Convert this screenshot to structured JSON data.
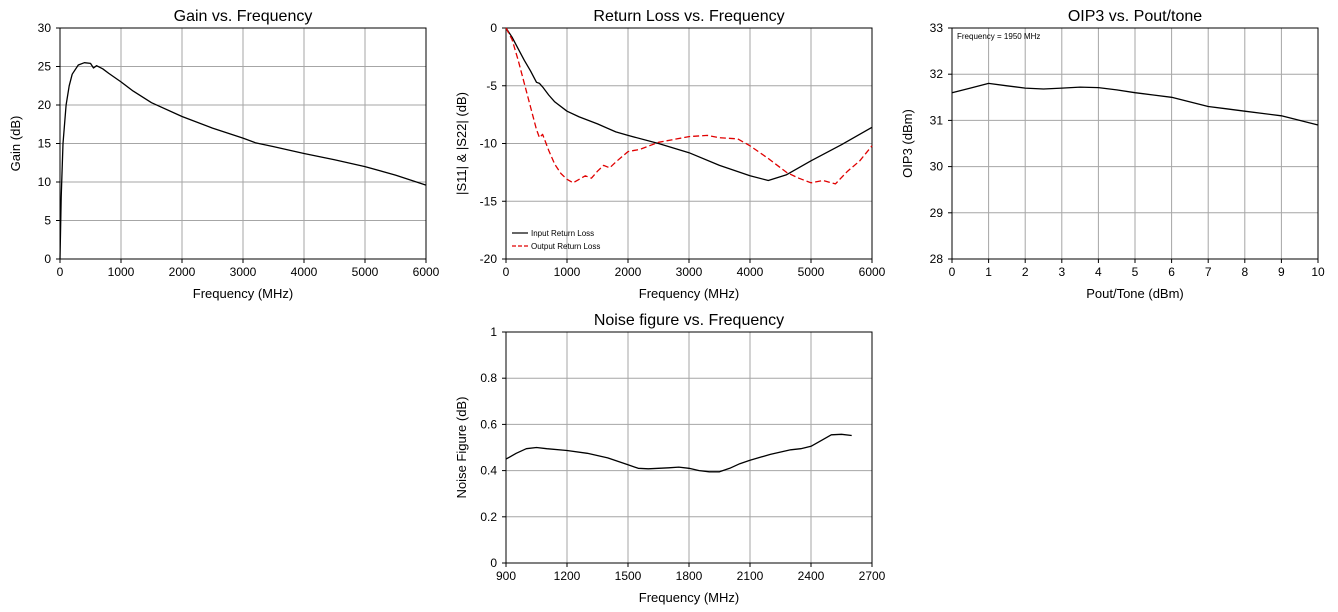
{
  "chart_data": [
    {
      "type": "line",
      "title": "Gain vs. Frequency",
      "xlabel": "Frequency (MHz)",
      "ylabel": "Gain (dB)",
      "xlim": [
        0,
        6000
      ],
      "ylim": [
        0,
        30
      ],
      "xticks": [
        "0",
        "1000",
        "2000",
        "3000",
        "4000",
        "5000",
        "6000"
      ],
      "yticks": [
        "0",
        "5",
        "10",
        "15",
        "20",
        "25",
        "30"
      ],
      "grid": true,
      "series": [
        {
          "color": "#000000",
          "dash": "solid",
          "x": [
            0,
            20,
            50,
            100,
            150,
            200,
            300,
            400,
            500,
            550,
            600,
            700,
            800,
            1000,
            1200,
            1500,
            2000,
            2500,
            3000,
            3200,
            3500,
            4000,
            4500,
            5000,
            5500,
            6000
          ],
          "y": [
            0,
            8,
            15,
            20,
            22.5,
            24,
            25.2,
            25.5,
            25.4,
            24.8,
            25.1,
            24.7,
            24.1,
            23,
            21.8,
            20.3,
            18.5,
            17,
            15.7,
            15.1,
            14.6,
            13.7,
            12.9,
            12,
            10.9,
            9.6
          ]
        }
      ]
    },
    {
      "type": "line",
      "title": "Return Loss vs. Frequency",
      "xlabel": "Frequency (MHz)",
      "ylabel": "|S11| & |S22| (dB)",
      "xlim": [
        0,
        6000
      ],
      "ylim": [
        -20,
        0
      ],
      "xticks": [
        "0",
        "1000",
        "2000",
        "3000",
        "4000",
        "5000",
        "6000"
      ],
      "yticks": [
        "-20",
        "-15",
        "-10",
        "-5",
        "0"
      ],
      "grid": true,
      "legend": "bottom-left",
      "series": [
        {
          "name": "Input Return Loss",
          "color": "#000000",
          "dash": "solid",
          "x": [
            0,
            100,
            200,
            300,
            400,
            500,
            550,
            600,
            700,
            800,
            1000,
            1200,
            1500,
            1800,
            2000,
            2500,
            3000,
            3500,
            4000,
            4300,
            4600,
            5000,
            5500,
            6000
          ],
          "y": [
            0,
            -0.8,
            -1.8,
            -2.8,
            -3.7,
            -4.7,
            -4.8,
            -5.1,
            -5.8,
            -6.4,
            -7.2,
            -7.7,
            -8.3,
            -9,
            -9.3,
            -10,
            -10.8,
            -11.9,
            -12.8,
            -13.2,
            -12.7,
            -11.5,
            -10.1,
            -8.6
          ]
        },
        {
          "name": "Output Return Loss",
          "color": "#e00000",
          "dash": "dashed",
          "x": [
            0,
            100,
            200,
            300,
            400,
            500,
            550,
            600,
            700,
            800,
            900,
            1000,
            1100,
            1200,
            1300,
            1400,
            1500,
            1600,
            1700,
            1800,
            2000,
            2200,
            2500,
            2800,
            3000,
            3300,
            3500,
            3800,
            4000,
            4300,
            4600,
            4800,
            5000,
            5200,
            5400,
            5600,
            5800,
            6000
          ],
          "y": [
            0,
            -1,
            -2.8,
            -4.8,
            -6.8,
            -8.8,
            -9.5,
            -9.2,
            -10.6,
            -11.8,
            -12.6,
            -13.1,
            -13.4,
            -13.1,
            -12.8,
            -13,
            -12.4,
            -11.9,
            -12.1,
            -11.6,
            -10.7,
            -10.5,
            -9.9,
            -9.6,
            -9.4,
            -9.3,
            -9.5,
            -9.6,
            -10.2,
            -11.3,
            -12.5,
            -13,
            -13.4,
            -13.2,
            -13.5,
            -12.4,
            -11.5,
            -10.2
          ]
        }
      ]
    },
    {
      "type": "line",
      "title": "OIP3 vs. Pout/tone",
      "xlabel": "Pout/Tone (dBm)",
      "ylabel": "OIP3 (dBm)",
      "xlim": [
        0,
        10
      ],
      "ylim": [
        28,
        33
      ],
      "xticks": [
        "0",
        "1",
        "2",
        "3",
        "4",
        "5",
        "6",
        "7",
        "8",
        "9",
        "10"
      ],
      "yticks": [
        "28",
        "29",
        "30",
        "31",
        "32",
        "33"
      ],
      "grid": true,
      "annotation": "Frequency = 1950 MHz",
      "series": [
        {
          "color": "#000000",
          "dash": "solid",
          "x": [
            0,
            0.5,
            1,
            1.5,
            2,
            2.5,
            3,
            3.5,
            4,
            4.5,
            5,
            5.5,
            6,
            6.5,
            7,
            7.5,
            8,
            8.5,
            9,
            9.5,
            10
          ],
          "y": [
            31.6,
            31.7,
            31.8,
            31.75,
            31.7,
            31.68,
            31.7,
            31.72,
            31.71,
            31.66,
            31.6,
            31.55,
            31.5,
            31.4,
            31.3,
            31.25,
            31.2,
            31.15,
            31.1,
            31,
            30.9
          ]
        }
      ]
    },
    {
      "type": "line",
      "title": "Noise figure vs. Frequency",
      "xlabel": "Frequency (MHz)",
      "ylabel": "Noise Figure (dB)",
      "xlim": [
        900,
        2700
      ],
      "ylim": [
        0,
        1
      ],
      "xticks": [
        "900",
        "1200",
        "1500",
        "1800",
        "2100",
        "2400",
        "2700"
      ],
      "yticks": [
        "0",
        "0.2",
        "0.4",
        "0.6",
        "0.8",
        "1"
      ],
      "grid": true,
      "series": [
        {
          "color": "#000000",
          "dash": "solid",
          "x": [
            900,
            950,
            1000,
            1050,
            1100,
            1200,
            1300,
            1400,
            1500,
            1550,
            1600,
            1650,
            1700,
            1750,
            1800,
            1850,
            1900,
            1950,
            2000,
            2050,
            2100,
            2200,
            2300,
            2350,
            2400,
            2450,
            2500,
            2550,
            2600
          ],
          "y": [
            0.45,
            0.475,
            0.495,
            0.5,
            0.495,
            0.487,
            0.475,
            0.455,
            0.425,
            0.41,
            0.408,
            0.41,
            0.412,
            0.415,
            0.41,
            0.4,
            0.395,
            0.395,
            0.41,
            0.43,
            0.445,
            0.47,
            0.49,
            0.495,
            0.505,
            0.53,
            0.555,
            0.557,
            0.552
          ]
        }
      ]
    }
  ]
}
